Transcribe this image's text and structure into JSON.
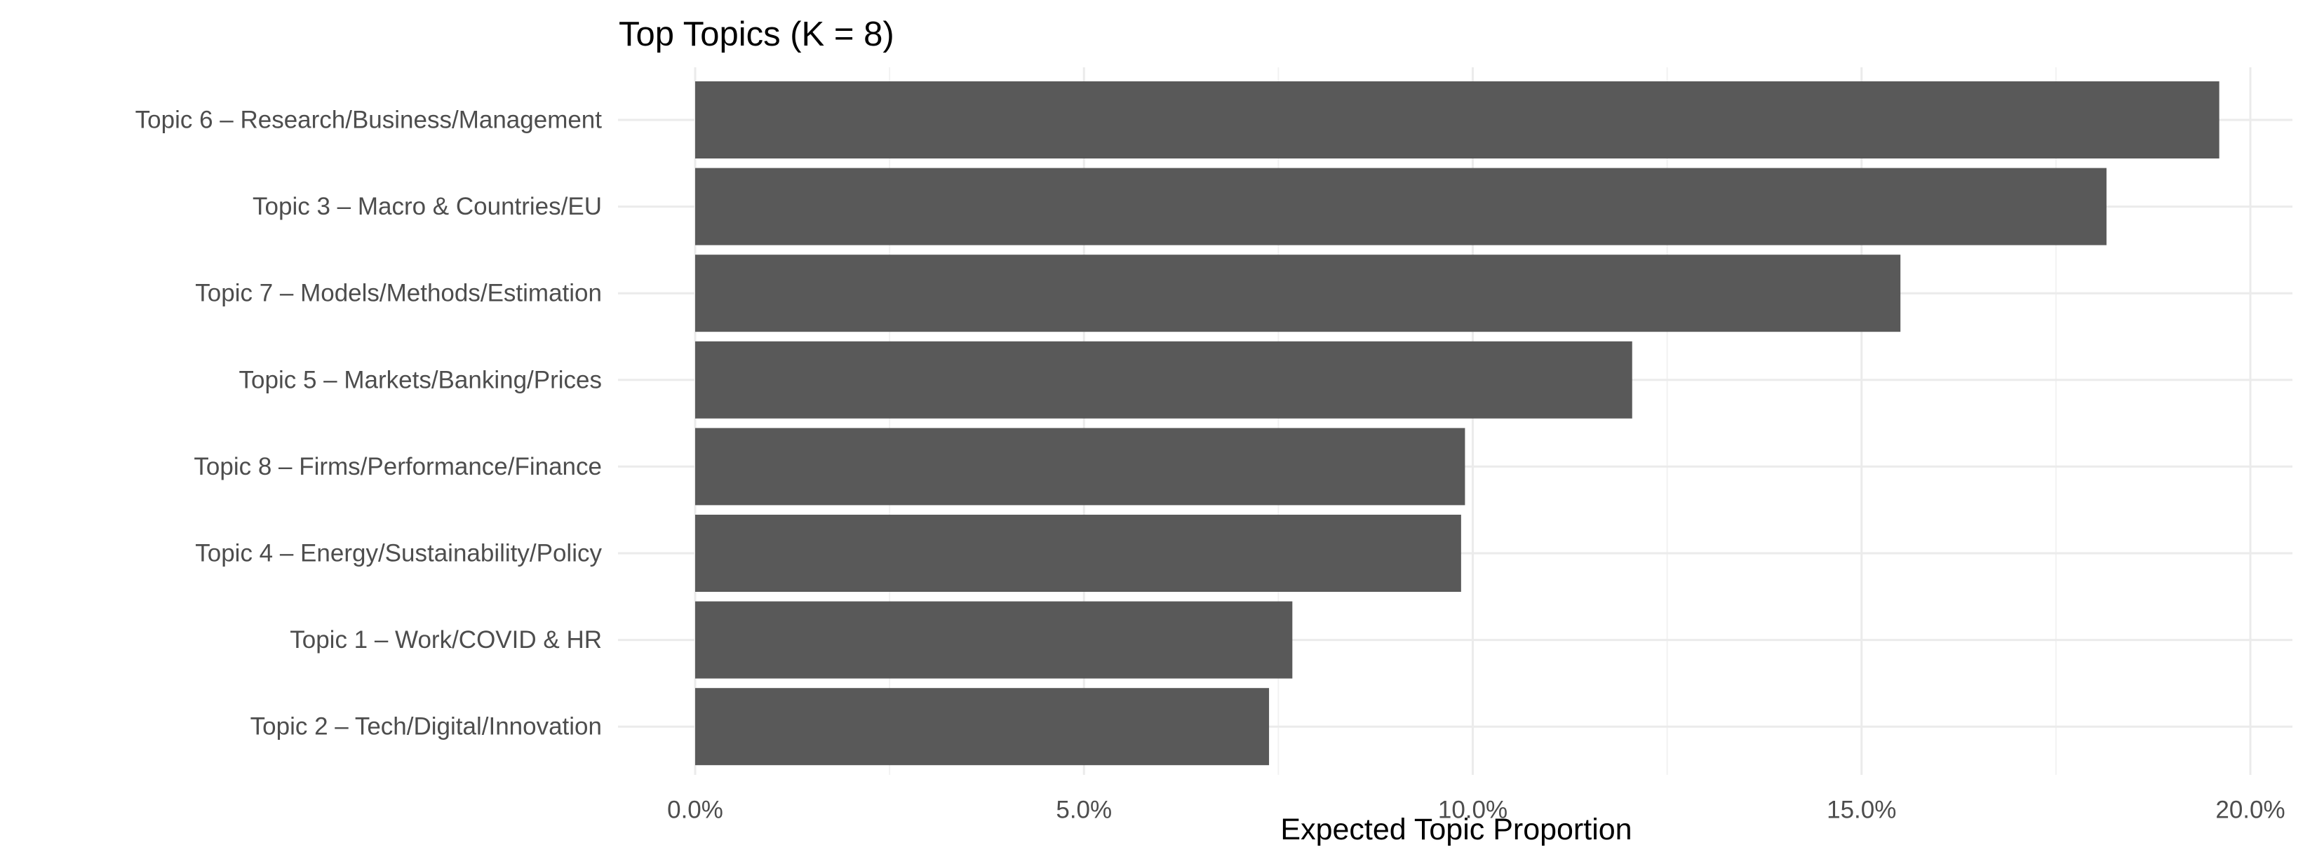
{
  "chart_data": {
    "type": "bar",
    "orientation": "horizontal",
    "title": "Top Topics (K = 8)",
    "xlabel": "Expected Topic Proportion",
    "ylabel": "",
    "categories": [
      "Topic 6 – Research/Business/Management",
      "Topic 3 – Macro & Countries/EU",
      "Topic 7 – Models/Methods/Estimation",
      "Topic 5 – Markets/Banking/Prices",
      "Topic 8 – Firms/Performance/Finance",
      "Topic 4 – Energy/Sustainability/Policy",
      "Topic 1 – Work/COVID & HR",
      "Topic 2 – Tech/Digital/Innovation"
    ],
    "values": [
      0.196,
      0.1815,
      0.155,
      0.1205,
      0.099,
      0.0985,
      0.0768,
      0.0738
    ],
    "xlim": [
      0,
      0.2
    ],
    "xticks": [
      0,
      0.05,
      0.1,
      0.15,
      0.2
    ],
    "xtick_labels": [
      "0.0%",
      "5.0%",
      "10.0%",
      "15.0%",
      "20.0%"
    ],
    "bar_color": "#595959",
    "grid": true,
    "legend": "none"
  }
}
